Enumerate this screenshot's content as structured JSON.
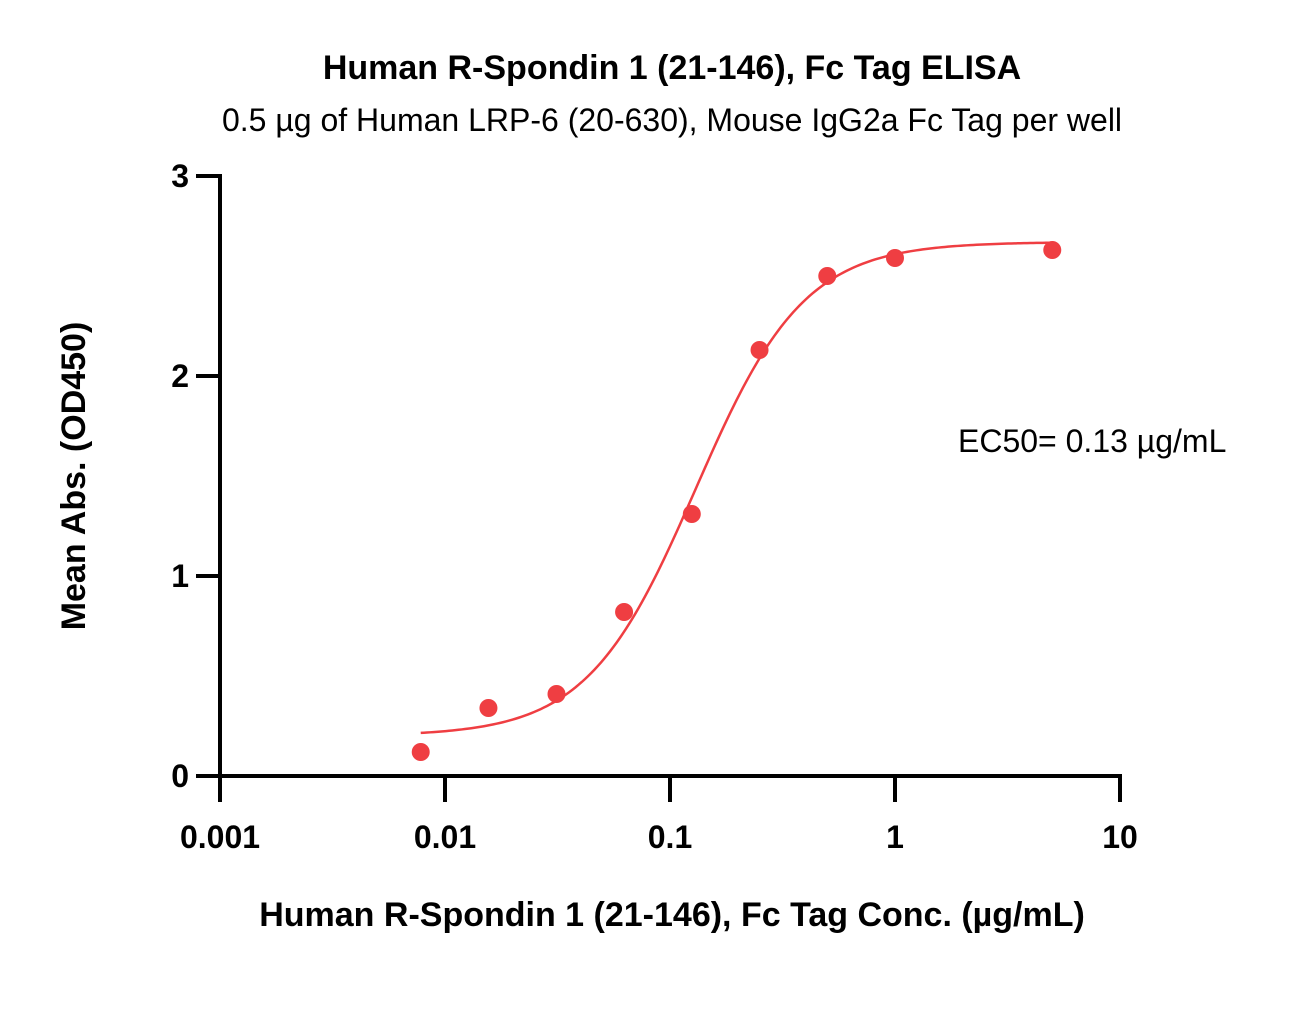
{
  "chart_data": {
    "type": "scatter",
    "title": "Human R-Spondin 1 (21-146), Fc Tag ELISA",
    "subtitle": "0.5 µg of Human LRP-6 (20-630), Mouse IgG2a Fc Tag per well",
    "xlabel": "Human R-Spondin 1 (21-146), Fc Tag Conc. (µg/mL)",
    "ylabel": "Mean Abs. (OD450)",
    "xscale": "log",
    "xlim": [
      0.001,
      10
    ],
    "ylim": [
      0,
      3
    ],
    "x_ticks": [
      {
        "value": 0.001,
        "label": "0.001"
      },
      {
        "value": 0.01,
        "label": "0.01"
      },
      {
        "value": 0.1,
        "label": "0.1"
      },
      {
        "value": 1,
        "label": "1"
      },
      {
        "value": 10,
        "label": "10"
      }
    ],
    "y_ticks": [
      {
        "value": 0,
        "label": "0"
      },
      {
        "value": 1,
        "label": "1"
      },
      {
        "value": 2,
        "label": "2"
      },
      {
        "value": 3,
        "label": "3"
      }
    ],
    "grid": false,
    "color": "#ef3e42",
    "series": [
      {
        "points": [
          {
            "x": 0.0078,
            "y": 0.12
          },
          {
            "x": 0.0156,
            "y": 0.34
          },
          {
            "x": 0.0313,
            "y": 0.41
          },
          {
            "x": 0.0625,
            "y": 0.82
          },
          {
            "x": 0.125,
            "y": 1.31
          },
          {
            "x": 0.25,
            "y": 2.13
          },
          {
            "x": 0.5,
            "y": 2.5
          },
          {
            "x": 1,
            "y": 2.59
          },
          {
            "x": 5,
            "y": 2.63
          }
        ],
        "fit": {
          "model": "4PL",
          "bottom": 0.2,
          "top": 2.67,
          "ec50": 0.13,
          "hill": 1.8,
          "x_range": [
            0.0078,
            5
          ]
        }
      }
    ],
    "annotations": [
      {
        "text": "EC50= 0.13 µg/mL"
      }
    ]
  }
}
